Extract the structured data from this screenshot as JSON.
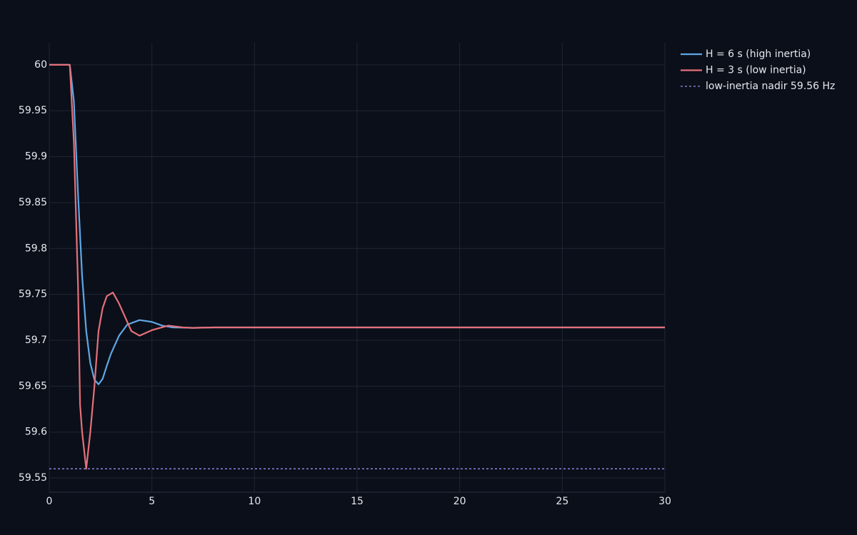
{
  "chart_data": {
    "type": "line",
    "xlim": [
      0,
      30
    ],
    "xticks": [
      0,
      5,
      10,
      15,
      20,
      25,
      30
    ],
    "ylim": [
      59.5345,
      60.024
    ],
    "yticks": [
      59.55,
      59.6,
      59.65,
      59.7,
      59.75,
      59.8,
      59.85,
      59.9,
      59.95,
      60
    ],
    "grid": true,
    "legend": "top-right-outside",
    "series": [
      {
        "name": "H = 6 s (high inertia)",
        "color": "#5ea8e6",
        "x": [
          0,
          1,
          1.2,
          1.4,
          1.6,
          1.8,
          2.0,
          2.2,
          2.4,
          2.6,
          2.8,
          3.0,
          3.4,
          3.8,
          4.4,
          5,
          5.5,
          6,
          7,
          8,
          10,
          15,
          20,
          25,
          30
        ],
        "values": [
          60,
          60,
          59.96,
          59.86,
          59.77,
          59.71,
          59.675,
          59.657,
          59.652,
          59.658,
          59.672,
          59.685,
          59.705,
          59.717,
          59.722,
          59.72,
          59.716,
          59.714,
          59.7135,
          59.714,
          59.714,
          59.714,
          59.714,
          59.714,
          59.714
        ]
      },
      {
        "name": "H = 3 s (low inertia)",
        "color": "#e5707a",
        "x": [
          0,
          1,
          1.2,
          1.4,
          1.5,
          1.6,
          1.8,
          2.0,
          2.2,
          2.4,
          2.6,
          2.8,
          3.1,
          3.4,
          3.7,
          4.0,
          4.4,
          5,
          5.8,
          6.5,
          7,
          8,
          10,
          15,
          20,
          25,
          30
        ],
        "values": [
          60,
          60,
          59.915,
          59.76,
          59.63,
          59.6,
          59.56,
          59.6,
          59.65,
          59.71,
          59.735,
          59.748,
          59.752,
          59.74,
          59.725,
          59.71,
          59.705,
          59.711,
          59.716,
          59.714,
          59.7135,
          59.714,
          59.714,
          59.714,
          59.714,
          59.714,
          59.714
        ]
      }
    ],
    "reference_line": {
      "name": "low-inertia nadir 59.56 Hz",
      "value": 59.56,
      "color": "#9b8cf2",
      "dash": true
    }
  }
}
